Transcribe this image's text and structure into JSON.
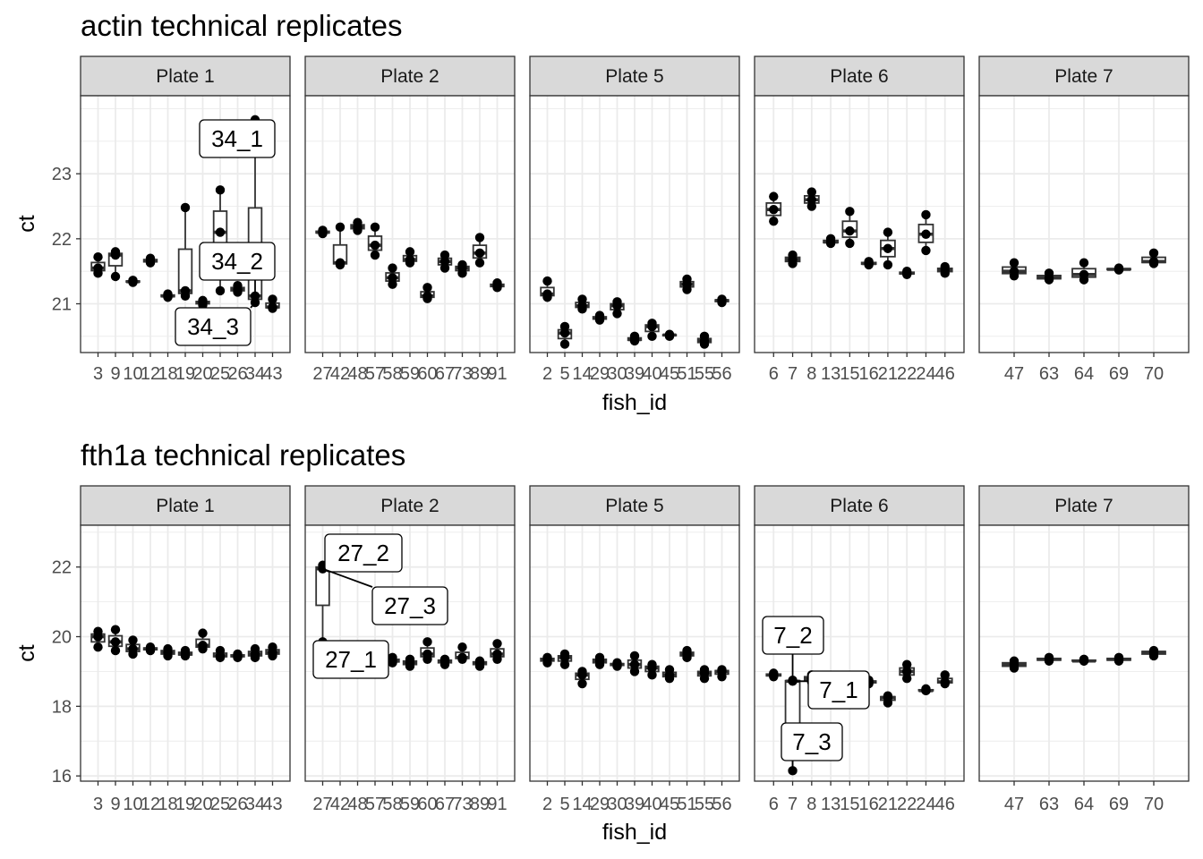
{
  "chart_data": [
    {
      "type": "boxplot",
      "title": "actin technical replicates",
      "xlabel": "fish_id",
      "ylabel": "ct",
      "ylim": [
        20.25,
        24.2
      ],
      "y_ticks": [
        21,
        22,
        23
      ],
      "grid": true,
      "facets": [
        {
          "strip": "Plate 1",
          "categories": [
            "3",
            "9",
            "10",
            "12",
            "18",
            "19",
            "20",
            "25",
            "26",
            "34",
            "43"
          ],
          "points": [
            [
              21.72,
              21.55,
              21.47
            ],
            [
              21.8,
              21.75,
              21.42
            ],
            [
              21.36,
              21.34,
              21.33
            ],
            [
              21.7,
              21.66,
              21.63
            ],
            [
              21.15,
              21.12,
              21.1
            ],
            [
              22.48,
              21.2,
              21.12
            ],
            [
              21.05,
              21.02,
              20.98
            ],
            [
              22.75,
              22.1,
              21.2
            ],
            [
              21.28,
              21.22,
              21.18
            ],
            [
              23.83,
              21.12,
              21.02
            ],
            [
              21.07,
              20.95,
              20.93
            ]
          ]
        },
        {
          "strip": "Plate 2",
          "categories": [
            "27",
            "42",
            "48",
            "57",
            "58",
            "59",
            "60",
            "67",
            "73",
            "89",
            "91"
          ],
          "points": [
            [
              22.13,
              22.1,
              22.08
            ],
            [
              22.18,
              21.63,
              21.6
            ],
            [
              22.25,
              22.18,
              22.13
            ],
            [
              22.18,
              21.9,
              21.75
            ],
            [
              21.55,
              21.4,
              21.3
            ],
            [
              21.8,
              21.68,
              21.63
            ],
            [
              21.25,
              21.12,
              21.08
            ],
            [
              21.75,
              21.65,
              21.55
            ],
            [
              21.6,
              21.55,
              21.47
            ],
            [
              22.02,
              21.78,
              21.63
            ],
            [
              21.32,
              21.28,
              21.25
            ]
          ]
        },
        {
          "strip": "Plate 5",
          "categories": [
            "2",
            "5",
            "14",
            "29",
            "30",
            "39",
            "40",
            "45",
            "51",
            "55",
            "56"
          ],
          "points": [
            [
              21.35,
              21.15,
              21.1
            ],
            [
              20.65,
              20.55,
              20.38
            ],
            [
              21.07,
              20.97,
              20.92
            ],
            [
              20.82,
              20.78,
              20.75
            ],
            [
              21.03,
              20.97,
              20.85
            ],
            [
              20.5,
              20.45,
              20.43
            ],
            [
              20.7,
              20.65,
              20.5
            ],
            [
              20.53,
              20.52,
              20.5
            ],
            [
              21.38,
              21.3,
              21.22
            ],
            [
              20.5,
              20.43,
              20.38
            ],
            [
              21.07,
              21.05,
              21.02
            ]
          ]
        },
        {
          "strip": "Plate 6",
          "categories": [
            "6",
            "7",
            "8",
            "13",
            "15",
            "16",
            "21",
            "22",
            "24",
            "46"
          ],
          "points": [
            [
              22.65,
              22.45,
              22.27
            ],
            [
              21.75,
              21.68,
              21.62
            ],
            [
              22.72,
              22.6,
              22.5
            ],
            [
              22.0,
              21.95,
              21.93
            ],
            [
              22.42,
              22.12,
              21.93
            ],
            [
              21.65,
              21.62,
              21.6
            ],
            [
              22.1,
              21.85,
              21.6
            ],
            [
              21.5,
              21.47,
              21.45
            ],
            [
              22.37,
              22.07,
              21.82
            ],
            [
              21.57,
              21.52,
              21.47
            ]
          ]
        },
        {
          "strip": "Plate 7",
          "categories": [
            "47",
            "63",
            "64",
            "69",
            "70"
          ],
          "points": [
            [
              21.63,
              21.5,
              21.43
            ],
            [
              21.47,
              21.4,
              21.37
            ],
            [
              21.63,
              21.45,
              21.37
            ],
            [
              21.55,
              21.53,
              21.52
            ],
            [
              21.78,
              21.65,
              21.62
            ]
          ]
        }
      ],
      "labels": [
        {
          "text": "34_1",
          "facet": 0,
          "category": "34",
          "value": 23.83
        },
        {
          "text": "34_2",
          "facet": 0,
          "category": "34",
          "value": 21.12
        },
        {
          "text": "34_3",
          "facet": 0,
          "category": "34",
          "value": 21.02
        }
      ]
    },
    {
      "type": "boxplot",
      "title": "fth1a technical replicates",
      "xlabel": "fish_id",
      "ylabel": "ct",
      "ylim": [
        15.85,
        23.2
      ],
      "y_ticks": [
        16,
        18,
        20,
        22
      ],
      "grid": true,
      "facets": [
        {
          "strip": "Plate 1",
          "categories": [
            "3",
            "9",
            "10",
            "12",
            "18",
            "19",
            "20",
            "25",
            "26",
            "34",
            "43"
          ],
          "points": [
            [
              20.15,
              20.0,
              19.7
            ],
            [
              20.2,
              19.85,
              19.6
            ],
            [
              19.9,
              19.65,
              19.5
            ],
            [
              19.7,
              19.65,
              19.6
            ],
            [
              19.65,
              19.55,
              19.45
            ],
            [
              19.6,
              19.5,
              19.45
            ],
            [
              20.1,
              19.75,
              19.65
            ],
            [
              19.6,
              19.45,
              19.4
            ],
            [
              19.5,
              19.45,
              19.4
            ],
            [
              19.65,
              19.5,
              19.4
            ],
            [
              19.7,
              19.55,
              19.45
            ]
          ]
        },
        {
          "strip": "Plate 2",
          "categories": [
            "27",
            "42",
            "48",
            "57",
            "58",
            "59",
            "60",
            "67",
            "73",
            "89",
            "91"
          ],
          "points": [
            [
              22.05,
              21.95,
              19.85
            ],
            [
              19.55,
              19.5,
              19.45
            ],
            [
              19.75,
              19.5,
              19.4
            ],
            [
              19.45,
              19.4,
              19.35
            ],
            [
              19.4,
              19.3,
              19.25
            ],
            [
              19.35,
              19.25,
              19.15
            ],
            [
              19.85,
              19.5,
              19.35
            ],
            [
              19.35,
              19.3,
              19.2
            ],
            [
              19.7,
              19.4,
              19.35
            ],
            [
              19.3,
              19.25,
              19.15
            ],
            [
              19.8,
              19.5,
              19.35
            ]
          ]
        },
        {
          "strip": "Plate 5",
          "categories": [
            "2",
            "5",
            "14",
            "29",
            "30",
            "39",
            "40",
            "45",
            "51",
            "55",
            "56"
          ],
          "points": [
            [
              19.4,
              19.35,
              19.25
            ],
            [
              19.5,
              19.4,
              19.2
            ],
            [
              19.0,
              18.9,
              18.65
            ],
            [
              19.4,
              19.3,
              19.2
            ],
            [
              19.25,
              19.2,
              19.15
            ],
            [
              19.45,
              19.2,
              19.0
            ],
            [
              19.2,
              19.1,
              18.9
            ],
            [
              19.05,
              18.9,
              18.8
            ],
            [
              19.6,
              19.5,
              19.4
            ],
            [
              19.05,
              18.95,
              18.8
            ],
            [
              19.05,
              19.0,
              18.85
            ]
          ]
        },
        {
          "strip": "Plate 6",
          "categories": [
            "6",
            "7",
            "8",
            "13",
            "15",
            "16",
            "21",
            "22",
            "24",
            "46"
          ],
          "points": [
            [
              18.95,
              18.9,
              18.85
            ],
            [
              18.75,
              18.72,
              16.15
            ],
            [
              18.9,
              18.8,
              18.7
            ],
            [
              18.75,
              18.7,
              18.65
            ],
            [
              18.8,
              18.7,
              18.6
            ],
            [
              18.75,
              18.7,
              18.65
            ],
            [
              18.3,
              18.25,
              18.1
            ],
            [
              19.2,
              19.0,
              18.8
            ],
            [
              18.5,
              18.45,
              18.45
            ],
            [
              18.9,
              18.7,
              18.65
            ]
          ]
        },
        {
          "strip": "Plate 7",
          "categories": [
            "47",
            "63",
            "64",
            "69",
            "70"
          ],
          "points": [
            [
              19.3,
              19.2,
              19.1
            ],
            [
              19.4,
              19.35,
              19.3
            ],
            [
              19.35,
              19.3,
              19.3
            ],
            [
              19.4,
              19.35,
              19.3
            ],
            [
              19.6,
              19.55,
              19.45
            ]
          ]
        }
      ],
      "labels": [
        {
          "text": "27_1",
          "facet": 1,
          "category": "27",
          "value": 19.85
        },
        {
          "text": "27_2",
          "facet": 1,
          "category": "27",
          "value": 22.05
        },
        {
          "text": "27_3",
          "facet": 1,
          "category": "27",
          "value": 21.95
        },
        {
          "text": "7_1",
          "facet": 3,
          "category": "7",
          "value": 18.72
        },
        {
          "text": "7_2",
          "facet": 3,
          "category": "7",
          "value": 18.75
        },
        {
          "text": "7_3",
          "facet": 3,
          "category": "7",
          "value": 16.15
        }
      ]
    }
  ]
}
